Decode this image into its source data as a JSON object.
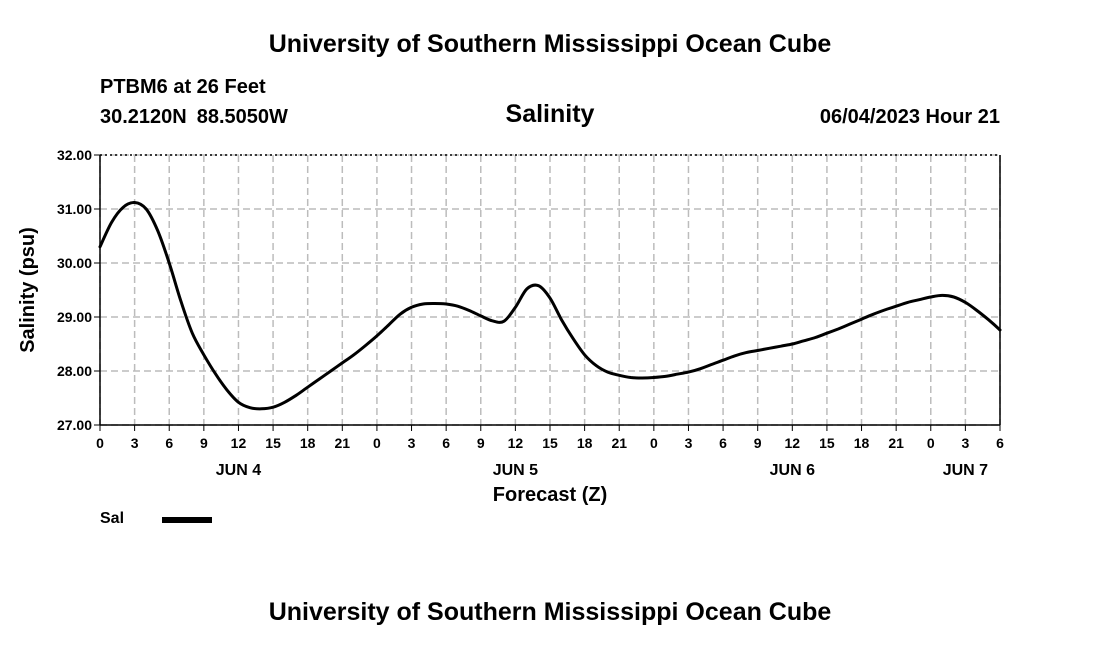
{
  "header": {
    "title": "University of Southern Mississippi Ocean Cube",
    "station": "PTBM6 at 26 Feet",
    "lat": "30.2120N",
    "lon": "88.5050W",
    "chart_title": "Salinity",
    "datetime": "06/04/2023 Hour 21"
  },
  "footer": {
    "title": "University of Southern Mississippi Ocean Cube"
  },
  "legend": {
    "label": "Sal",
    "color": "#000000"
  },
  "chart_data": {
    "type": "line",
    "title": "Salinity",
    "xlabel": "Forecast (Z)",
    "ylabel": "Salinity (psu)",
    "ylim": [
      27.0,
      32.0
    ],
    "y_ticks": [
      "27.00",
      "28.00",
      "29.00",
      "30.00",
      "31.00",
      "32.00"
    ],
    "x_range_hours": [
      0,
      78
    ],
    "x_tick_labels": [
      "0",
      "3",
      "6",
      "9",
      "12",
      "15",
      "18",
      "21",
      "0",
      "3",
      "6",
      "9",
      "12",
      "15",
      "18",
      "21",
      "0",
      "3",
      "6",
      "9",
      "12",
      "15",
      "18",
      "21",
      "0",
      "3",
      "6"
    ],
    "day_labels": [
      {
        "label": "JUN 4",
        "hour": 12
      },
      {
        "label": "JUN 5",
        "hour": 36
      },
      {
        "label": "JUN 6",
        "hour": 60
      },
      {
        "label": "JUN 7",
        "hour": 75
      }
    ],
    "grid": true,
    "series": [
      {
        "name": "Sal",
        "x": [
          0,
          1,
          2,
          3,
          4,
          5,
          6,
          7,
          8,
          9,
          10,
          11,
          12,
          13,
          14,
          15,
          16,
          17,
          18,
          19,
          20,
          21,
          22,
          23,
          24,
          25,
          26,
          27,
          28,
          29,
          30,
          31,
          32,
          33,
          34,
          35,
          36,
          37,
          38,
          39,
          40,
          41,
          42,
          43,
          44,
          45,
          46,
          47,
          48,
          49,
          50,
          51,
          52,
          53,
          54,
          55,
          56,
          57,
          58,
          59,
          60,
          61,
          62,
          63,
          64,
          65,
          66,
          67,
          68,
          69,
          70,
          71,
          72,
          73,
          74,
          75,
          76,
          77,
          78
        ],
        "values": [
          30.3,
          30.75,
          31.03,
          31.12,
          31.0,
          30.6,
          30.0,
          29.3,
          28.7,
          28.3,
          27.95,
          27.65,
          27.42,
          27.32,
          27.3,
          27.33,
          27.42,
          27.55,
          27.7,
          27.85,
          28.0,
          28.15,
          28.3,
          28.47,
          28.65,
          28.85,
          29.05,
          29.18,
          29.24,
          29.25,
          29.24,
          29.2,
          29.12,
          29.02,
          28.93,
          28.92,
          29.18,
          29.52,
          29.58,
          29.35,
          28.95,
          28.6,
          28.3,
          28.1,
          27.98,
          27.92,
          27.88,
          27.87,
          27.88,
          27.9,
          27.94,
          27.98,
          28.04,
          28.12,
          28.2,
          28.28,
          28.34,
          28.38,
          28.42,
          28.46,
          28.5,
          28.56,
          28.62,
          28.7,
          28.78,
          28.87,
          28.96,
          29.05,
          29.13,
          29.2,
          29.27,
          29.32,
          29.37,
          29.4,
          29.37,
          29.27,
          29.12,
          28.95,
          28.76
        ]
      }
    ]
  }
}
